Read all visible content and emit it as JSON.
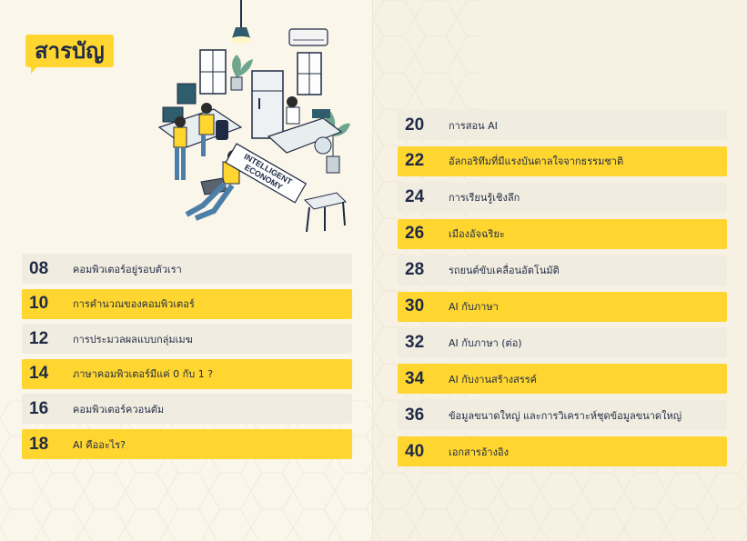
{
  "title": "สารบัญ",
  "illustration": {
    "label_line1": "INTELLIGENT",
    "label_line2": "ECONOMY"
  },
  "left_items": [
    {
      "page": "08",
      "title": "คอมพิวเตอร์อยู่รอบตัวเรา",
      "highlight": false
    },
    {
      "page": "10",
      "title": "การคำนวณของคอมพิวเตอร์",
      "highlight": true
    },
    {
      "page": "12",
      "title": "การประมวลผลแบบกลุ่มเมฆ",
      "highlight": false
    },
    {
      "page": "14",
      "title": "ภาษาคอมพิวเตอร์มีแค่ 0 กับ 1 ?",
      "highlight": true
    },
    {
      "page": "16",
      "title": "คอมพิวเตอร์ควอนตัม",
      "highlight": false
    },
    {
      "page": "18",
      "title": "AI คืออะไร?",
      "highlight": true
    }
  ],
  "right_items": [
    {
      "page": "20",
      "title": "การสอน AI",
      "highlight": false
    },
    {
      "page": "22",
      "title": "อัลกอริทึมที่มีแรงบันดาลใจจากธรรมชาติ",
      "highlight": true
    },
    {
      "page": "24",
      "title": "การเรียนรู้เชิงลึก",
      "highlight": false
    },
    {
      "page": "26",
      "title": "เมืองอัจฉริยะ",
      "highlight": true
    },
    {
      "page": "28",
      "title": "รถยนต์ขับเคลื่อนอัตโนมัติ",
      "highlight": false
    },
    {
      "page": "30",
      "title": "AI กับภาษา",
      "highlight": true
    },
    {
      "page": "32",
      "title": "AI กับภาษา (ต่อ)",
      "highlight": false
    },
    {
      "page": "34",
      "title": "AI กับงานสร้างสรรค์",
      "highlight": true
    },
    {
      "page": "36",
      "title": "ข้อมูลขนาดใหญ่ และการวิเคราะห์ชุดข้อมูลขนาดใหญ่",
      "highlight": false
    },
    {
      "page": "40",
      "title": "เอกสารอ้างอิง",
      "highlight": true
    }
  ],
  "colors": {
    "accent": "#ffd630",
    "text": "#1f2a44",
    "row_plain": "#f1ece0",
    "page_bg": "#faf6ea"
  }
}
